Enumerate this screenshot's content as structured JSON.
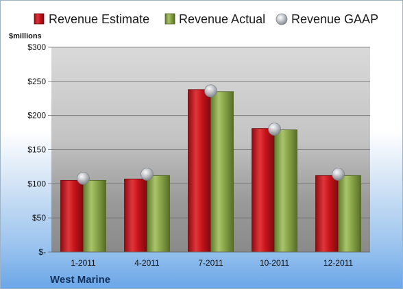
{
  "company": "West Marine",
  "chart_data": {
    "type": "bar",
    "categories": [
      "1-2011",
      "4-2011",
      "7-2011",
      "10-2011",
      "12-2011"
    ],
    "series": [
      {
        "name": "Revenue Estimate",
        "kind": "bar",
        "color": "#c8141b",
        "values": [
          105,
          107,
          238,
          181,
          112
        ]
      },
      {
        "name": "Revenue Actual",
        "kind": "bar",
        "color": "#8aa64a",
        "values": [
          105,
          112,
          235,
          179,
          112
        ]
      },
      {
        "name": "Revenue GAAP",
        "kind": "marker",
        "color": "#b8bcc4",
        "values": [
          108,
          114,
          236,
          180,
          114
        ]
      }
    ],
    "ylabel": "$millions",
    "ylim": [
      0,
      300
    ],
    "yticks": [
      0,
      50,
      100,
      150,
      200,
      250,
      300
    ],
    "ytick_labels": [
      "$-",
      "$50",
      "$100",
      "$150",
      "$200",
      "$250",
      "$300"
    ],
    "grid": true,
    "legend_position": "top"
  }
}
